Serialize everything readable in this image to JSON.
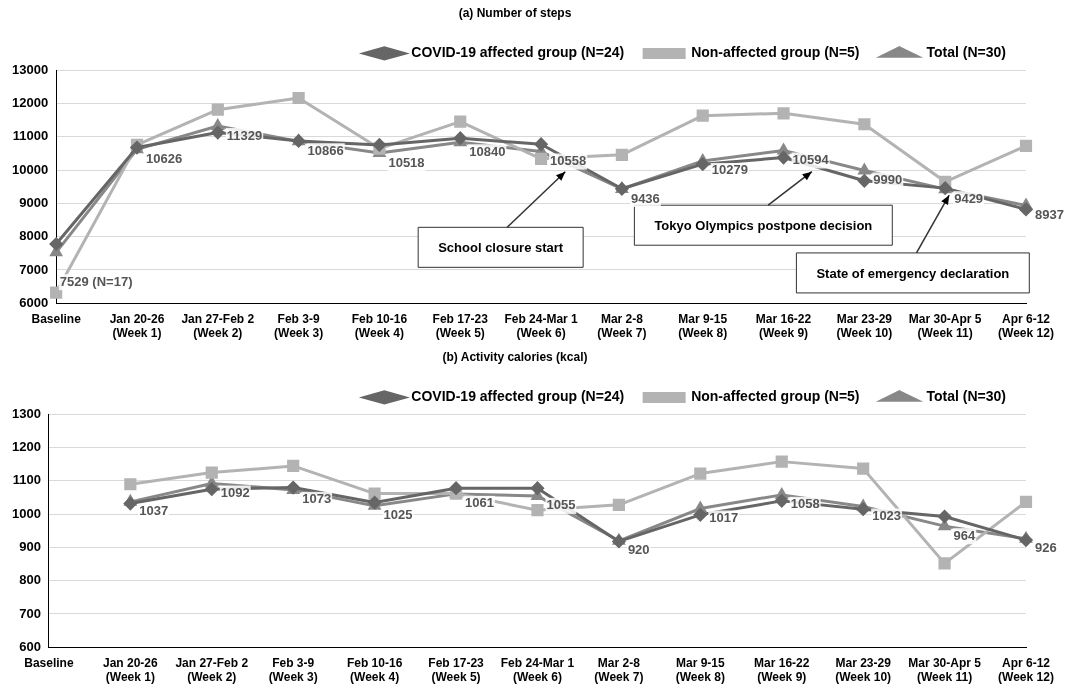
{
  "chart_data": [
    {
      "type": "line",
      "title": "(a) Number of steps",
      "categories": [
        "Baseline",
        "Jan 20-26\n(Week 1)",
        "Jan 27-Feb 2\n(Week 2)",
        "Feb 3-9\n(Week 3)",
        "Feb 10-16\n(Week 4)",
        "Feb 17-23\n(Week 5)",
        "Feb 24-Mar 1\n(Week 6)",
        "Mar 2-8\n(Week 7)",
        "Mar 9-15\n(Week 8)",
        "Mar 16-22\n(Week 9)",
        "Mar 23-29\n(Week 10)",
        "Mar 30-Apr 5\n(Week 11)",
        "Apr 6-12\n(Week 12)"
      ],
      "series": [
        {
          "name": "COVID-19 affected group (N=24)",
          "color": "#666666",
          "marker": "diamond",
          "values": [
            7780,
            10680,
            11130,
            10880,
            10760,
            10960,
            10780,
            9440,
            10180,
            10380,
            9680,
            9460,
            8820
          ]
        },
        {
          "name": "Non-affected group (N=5)",
          "color": "#b3b3b3",
          "marker": "square",
          "values": [
            6320,
            10760,
            11820,
            12170,
            10650,
            11460,
            10340,
            10460,
            11640,
            11710,
            11380,
            9650,
            10730
          ]
        },
        {
          "name": "Total (N=30)",
          "color": "#888888",
          "marker": "triangle",
          "values": [
            7529,
            10626,
            11329,
            10866,
            10518,
            10840,
            10558,
            9436,
            10279,
            10594,
            9990,
            9429,
            8937
          ],
          "value_labels": [
            "7529 (N=17)",
            "10626",
            "11329",
            "10866",
            "10518",
            "10840",
            "10558",
            "9436",
            "10279",
            "10594",
            "9990",
            "9429",
            "8937"
          ]
        }
      ],
      "ylim": [
        6000,
        13000
      ],
      "yticks": [
        6000,
        7000,
        8000,
        9000,
        10000,
        11000,
        12000,
        13000
      ],
      "grid": "y",
      "legend": "top right",
      "line_style": "solid",
      "annotations": [
        "School closure start",
        "Tokyo Olympics postpone decision",
        {
          "text": "State of emergency declaration",
          "x": "Mar 30-Apr 5\n(Week 11)",
          "y": 9429
        }
      ]
    },
    {
      "type": "line",
      "title": "(b) Activity calories (kcal)",
      "categories": [
        "Baseline",
        "Jan 20-26\n(Week 1)",
        "Jan 27-Feb 2\n(Week 2)",
        "Feb 3-9\n(Week 3)",
        "Feb 10-16\n(Week 4)",
        "Feb 17-23\n(Week 5)",
        "Feb 24-Mar 1\n(Week 6)",
        "Mar 2-8\n(Week 7)",
        "Mar 9-15\n(Week 8)",
        "Mar 16-22\n(Week 9)",
        "Mar 23-29\n(Week 10)",
        "Mar 30-Apr 5\n(Week 11)",
        "Apr 6-12\n(Week 12)"
      ],
      "series": [
        {
          "name": "COVID-19 affected group (N=24)",
          "color": "#666666",
          "marker": "diamond",
          "values": [
            null,
            1032,
            1075,
            1080,
            1035,
            1078,
            1078,
            918,
            998,
            1040,
            1015,
            993,
            922
          ]
        },
        {
          "name": "Non-affected group (N=5)",
          "color": "#b3b3b3",
          "marker": "square",
          "values": [
            null,
            1090,
            1125,
            1145,
            1062,
            1062,
            1012,
            1028,
            1122,
            1158,
            1137,
            852,
            1037
          ]
        },
        {
          "name": "Total (N=30)",
          "color": "#888888",
          "marker": "triangle",
          "values": [
            null,
            1037,
            1092,
            1073,
            1025,
            1061,
            1055,
            920,
            1017,
            1058,
            1023,
            964,
            926
          ],
          "value_labels": [
            null,
            "1037",
            "1092",
            "1073",
            "1025",
            "1061",
            "1055",
            "920",
            "1017",
            "1058",
            "1023",
            "964",
            "926"
          ]
        }
      ],
      "ylim": [
        600,
        1300
      ],
      "yticks": [
        600,
        700,
        800,
        900,
        1000,
        1100,
        1200,
        1300
      ],
      "grid": "y",
      "legend": "top right",
      "line_style": "solid"
    }
  ]
}
